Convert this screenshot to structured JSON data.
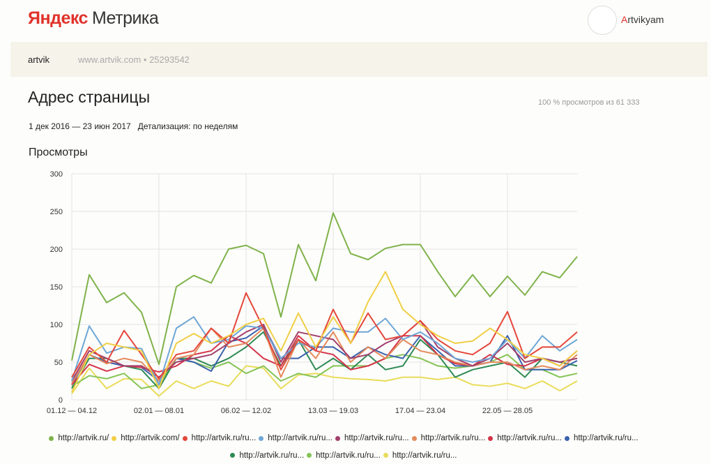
{
  "header": {
    "logo_brand": "Яндекс",
    "logo_product": "Метрика",
    "user_initial": "A",
    "user_rest": "rtvikyam"
  },
  "counter": {
    "name": "artvik",
    "site": "www.artvik.com • 25293542"
  },
  "report": {
    "title": "Адрес страницы",
    "share": "100 % просмотров из 61 333",
    "period": "1 дек 2016 — 23 июн 2017",
    "detail": "Детализация: по неделям",
    "metric": "Просмотры"
  },
  "chart_data": {
    "type": "line",
    "title": "Просмотры",
    "ylim": [
      0,
      300
    ],
    "yticks": [
      "0",
      "50",
      "100",
      "150",
      "200",
      "250",
      "300"
    ],
    "xtick_labels": [
      "01.12 — 04.12",
      "02.01 — 08.01",
      "06.02 — 12.02",
      "13.03 — 19.03",
      "17.04 — 23.04",
      "22.05 — 28.05"
    ],
    "grid": true,
    "legend": "bottom",
    "series": [
      {
        "name": "http://artvik.ru/",
        "color": "#7fb24a",
        "values": [
          52,
          166,
          129,
          142,
          116,
          47,
          150,
          165,
          155,
          200,
          205,
          194,
          110,
          206,
          158,
          248,
          194,
          186,
          201,
          206,
          206,
          170,
          137,
          166,
          137,
          164,
          139,
          170,
          162,
          190
        ]
      },
      {
        "name": "http://artvik.com/",
        "color": "#f0cf45",
        "values": [
          10,
          60,
          75,
          70,
          65,
          15,
          75,
          88,
          75,
          85,
          100,
          108,
          65,
          115,
          70,
          110,
          75,
          130,
          170,
          120,
          100,
          85,
          75,
          78,
          95,
          80,
          60,
          55,
          45,
          65
        ]
      },
      {
        "name": "http://artvik.ru/ru...",
        "color": "#e4473b",
        "values": [
          30,
          70,
          50,
          92,
          60,
          28,
          60,
          65,
          95,
          75,
          142,
          95,
          40,
          80,
          65,
          120,
          75,
          115,
          80,
          85,
          105,
          80,
          65,
          60,
          75,
          117,
          55,
          70,
          70,
          90
        ]
      },
      {
        "name": "http://artvik.ru/ru...",
        "color": "#6fa6d6",
        "values": [
          25,
          98,
          62,
          70,
          68,
          20,
          95,
          110,
          75,
          80,
          98,
          95,
          55,
          75,
          70,
          95,
          90,
          90,
          108,
          80,
          90,
          75,
          55,
          50,
          55,
          80,
          55,
          85,
          65,
          80
        ]
      },
      {
        "name": "http://artvik.ru/ru...",
        "color": "#a23f6c",
        "values": [
          25,
          65,
          55,
          45,
          45,
          30,
          50,
          55,
          60,
          75,
          90,
          100,
          50,
          90,
          85,
          80,
          55,
          60,
          75,
          85,
          105,
          70,
          55,
          45,
          55,
          75,
          50,
          55,
          50,
          55
        ]
      },
      {
        "name": "http://artvik.ru/ru...",
        "color": "#e58a5c",
        "values": [
          22,
          60,
          48,
          55,
          50,
          25,
          55,
          60,
          95,
          70,
          75,
          95,
          30,
          80,
          55,
          90,
          50,
          70,
          55,
          80,
          65,
          60,
          50,
          45,
          50,
          50,
          40,
          45,
          40,
          60
        ]
      },
      {
        "name": "http://artvik.ru/ru...",
        "color": "#d43448",
        "values": [
          20,
          47,
          38,
          45,
          43,
          37,
          45,
          60,
          65,
          85,
          75,
          55,
          45,
          85,
          65,
          60,
          40,
          45,
          55,
          85,
          85,
          60,
          48,
          45,
          60,
          47,
          45,
          55,
          45,
          65
        ]
      },
      {
        "name": "http://artvik.ru/ru...",
        "color": "#3a62ad",
        "values": [
          20,
          60,
          50,
          45,
          43,
          25,
          55,
          50,
          38,
          77,
          82,
          98,
          55,
          55,
          70,
          70,
          55,
          70,
          60,
          55,
          85,
          65,
          45,
          45,
          50,
          85,
          40,
          40,
          40,
          52
        ]
      },
      {
        "name": "http://artvik.ru/ru...",
        "color": "#2f8a55",
        "values": [
          15,
          55,
          55,
          45,
          40,
          15,
          55,
          55,
          45,
          55,
          70,
          90,
          45,
          80,
          40,
          55,
          40,
          60,
          40,
          45,
          80,
          60,
          30,
          40,
          45,
          50,
          30,
          55,
          50,
          45
        ]
      },
      {
        "name": "http://artvik.ru/ru...",
        "color": "#86c456",
        "values": [
          18,
          32,
          28,
          35,
          15,
          20,
          55,
          50,
          42,
          50,
          35,
          45,
          25,
          35,
          30,
          45,
          45,
          45,
          55,
          60,
          55,
          45,
          42,
          45,
          50,
          60,
          40,
          40,
          30,
          35
        ]
      },
      {
        "name": "http://artvik.ru/ru...",
        "color": "#eadc5a",
        "values": [
          8,
          42,
          15,
          28,
          27,
          5,
          25,
          15,
          25,
          18,
          45,
          42,
          15,
          33,
          35,
          30,
          28,
          27,
          25,
          30,
          30,
          27,
          30,
          20,
          18,
          22,
          15,
          25,
          12,
          25
        ]
      }
    ]
  }
}
